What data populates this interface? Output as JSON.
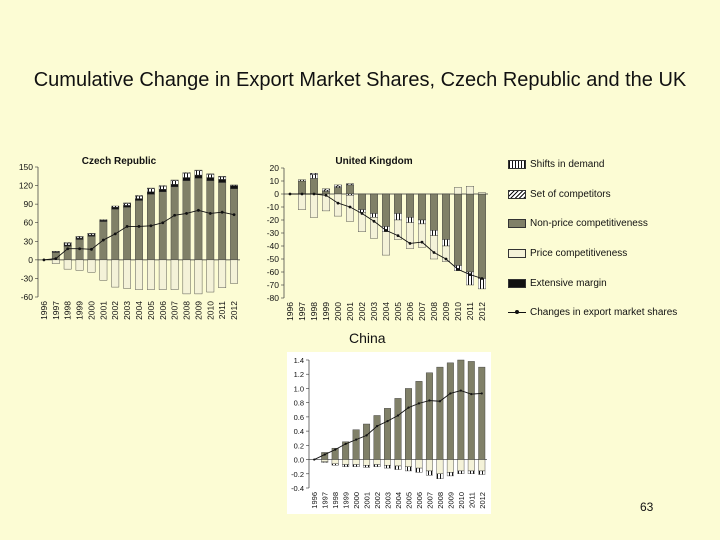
{
  "slide": {
    "title": "Cumulative Change in Export Market Shares, Czech Republic and the UK",
    "china_label": "China",
    "page_number": "63"
  },
  "legend": [
    {
      "label": "Shifts in demand",
      "swatch": "shifts"
    },
    {
      "label": "Set of competitors",
      "swatch": "competitors"
    },
    {
      "label": "Non-price competitiveness",
      "swatch": "nonprice"
    },
    {
      "label": "Price competitiveness",
      "swatch": "price"
    },
    {
      "label": "Extensive margin",
      "swatch": "extensive"
    },
    {
      "label": "Changes in export market shares",
      "swatch": "line"
    }
  ],
  "colors": {
    "background": "#fcfcd4",
    "nonprice": "#808068",
    "price": "#f4f2d8",
    "extensive": "#111111",
    "line": "#111111"
  },
  "chart_data": [
    {
      "type": "bar",
      "title": "Czech Republic",
      "categories": [
        "1996",
        "1997",
        "1998",
        "1999",
        "2000",
        "2001",
        "2002",
        "2003",
        "2004",
        "2005",
        "2006",
        "2007",
        "2008",
        "2009",
        "2010",
        "2011",
        "2012"
      ],
      "ylim": [
        -60,
        150
      ],
      "yticks": [
        -60,
        -30,
        0,
        30,
        60,
        90,
        120,
        150
      ],
      "series": [
        {
          "name": "Non-price competitiveness",
          "values": [
            0,
            12,
            22,
            33,
            38,
            62,
            82,
            85,
            96,
            106,
            110,
            118,
            128,
            132,
            128,
            125,
            115
          ]
        },
        {
          "name": "Extensive margin",
          "values": [
            0,
            1,
            2,
            2,
            2,
            2,
            3,
            3,
            3,
            4,
            4,
            4,
            5,
            5,
            5,
            5,
            5
          ]
        },
        {
          "name": "Shifts in demand",
          "values": [
            0,
            1,
            3,
            2,
            2,
            1,
            2,
            3,
            4,
            5,
            5,
            6,
            7,
            7,
            5,
            4,
            1
          ]
        },
        {
          "name": "Set of competitors",
          "values": [
            0,
            0,
            1,
            1,
            1,
            0,
            0,
            1,
            1,
            1,
            1,
            1,
            1,
            1,
            1,
            1,
            0
          ]
        },
        {
          "name": "Price competitiveness",
          "values": [
            0,
            -6,
            -15,
            -17,
            -20,
            -33,
            -44,
            -46,
            -48,
            -48,
            -48,
            -48,
            -55,
            -55,
            -52,
            -45,
            -38
          ]
        },
        {
          "name": "Changes in export market shares",
          "values": [
            0,
            2,
            18,
            18,
            17,
            32,
            42,
            54,
            54,
            55,
            60,
            72,
            75,
            80,
            75,
            77,
            73
          ]
        }
      ]
    },
    {
      "type": "bar",
      "title": "United Kingdom",
      "categories": [
        "1996",
        "1997",
        "1998",
        "1999",
        "2000",
        "2001",
        "2002",
        "2003",
        "2004",
        "2005",
        "2006",
        "2007",
        "2008",
        "2009",
        "2010",
        "2011",
        "2012"
      ],
      "ylim": [
        -80,
        20
      ],
      "yticks": [
        -80,
        -70,
        -60,
        -50,
        -40,
        -30,
        -20,
        -10,
        0,
        10,
        20
      ],
      "series": [
        {
          "name": "Non-price competitiveness",
          "values": [
            0,
            10,
            12,
            2,
            5,
            7,
            -12,
            -15,
            -25,
            -15,
            -18,
            -20,
            -28,
            -35,
            -55,
            -60,
            -65
          ]
        },
        {
          "name": "Extensive margin",
          "values": [
            0,
            0,
            0,
            0,
            0,
            0,
            0,
            0,
            0,
            0,
            0,
            0,
            0,
            0,
            0,
            0,
            0
          ]
        },
        {
          "name": "Shifts in demand",
          "values": [
            0,
            1,
            3,
            1,
            1,
            -1,
            -2,
            -3,
            -4,
            -5,
            -4,
            -3,
            -4,
            -5,
            -4,
            -10,
            -8
          ]
        },
        {
          "name": "Set of competitors",
          "values": [
            0,
            0,
            1,
            1,
            1,
            1,
            0,
            0,
            0,
            0,
            0,
            0,
            0,
            0,
            0,
            0,
            0
          ]
        },
        {
          "name": "Price competitiveness",
          "values": [
            0,
            -12,
            -18,
            -13,
            -17,
            -20,
            -15,
            -16,
            -18,
            -15,
            -20,
            -18,
            -18,
            -12,
            5,
            6,
            1
          ]
        },
        {
          "name": "Changes in export market shares",
          "values": [
            0,
            0,
            0,
            -1,
            -7,
            -10,
            -15,
            -21,
            -28,
            -32,
            -38,
            -37,
            -45,
            -50,
            -58,
            -62,
            -65
          ]
        }
      ]
    },
    {
      "type": "bar",
      "title": "",
      "categories": [
        "1996",
        "1997",
        "1998",
        "1999",
        "2000",
        "2001",
        "2002",
        "2003",
        "2004",
        "2005",
        "2006",
        "2007",
        "2008",
        "2009",
        "2010",
        "2011",
        "2012"
      ],
      "ylim": [
        -0.4,
        1.4
      ],
      "yticks": [
        -0.4,
        -0.2,
        0.0,
        0.2,
        0.4,
        0.6,
        0.8,
        1.0,
        1.2,
        1.4
      ],
      "series": [
        {
          "name": "Non-price competitiveness",
          "values": [
            0,
            0.1,
            0.16,
            0.25,
            0.42,
            0.5,
            0.62,
            0.72,
            0.86,
            1.0,
            1.1,
            1.22,
            1.3,
            1.36,
            1.4,
            1.38,
            1.3
          ]
        },
        {
          "name": "Price competitiveness",
          "values": [
            0,
            -0.03,
            -0.06,
            -0.07,
            -0.07,
            -0.08,
            -0.07,
            -0.08,
            -0.09,
            -0.1,
            -0.12,
            -0.16,
            -0.2,
            -0.18,
            -0.16,
            -0.16,
            -0.16
          ]
        },
        {
          "name": "Shifts in demand",
          "values": [
            0,
            -0.01,
            -0.02,
            -0.03,
            -0.03,
            -0.03,
            -0.03,
            -0.04,
            -0.05,
            -0.06,
            -0.06,
            -0.06,
            -0.07,
            -0.05,
            -0.04,
            -0.04,
            -0.05
          ]
        },
        {
          "name": "Changes in export market shares",
          "values": [
            0,
            0.07,
            0.14,
            0.22,
            0.28,
            0.34,
            0.47,
            0.54,
            0.62,
            0.73,
            0.79,
            0.83,
            0.82,
            0.93,
            0.97,
            0.92,
            0.93
          ]
        }
      ]
    }
  ]
}
